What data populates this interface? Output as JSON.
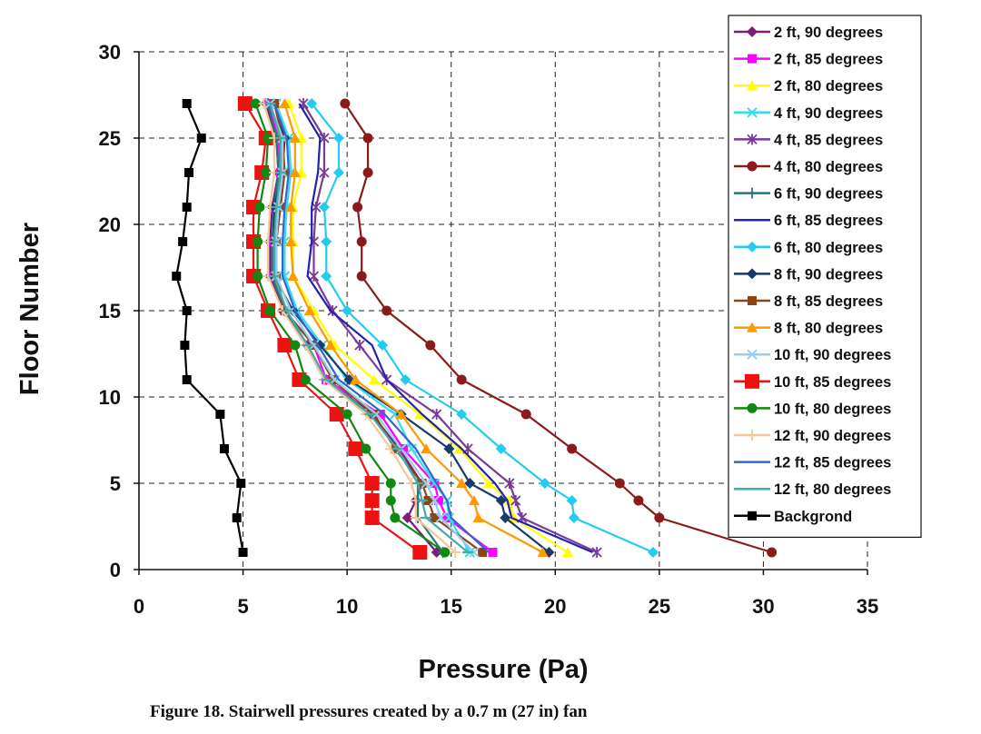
{
  "caption": "Figure 18.  Stairwell pressures created by a 0.7 m (27 in) fan",
  "chart_data": {
    "type": "line",
    "xlabel": "Pressure (Pa)",
    "ylabel": "Floor Number",
    "xlim": [
      0,
      35
    ],
    "ylim": [
      0,
      30
    ],
    "xticks": [
      0,
      5,
      10,
      15,
      20,
      25,
      30,
      35
    ],
    "yticks": [
      0,
      5,
      10,
      15,
      20,
      25,
      30
    ],
    "grid": "dashed",
    "legend_position": "right",
    "floors": [
      1,
      3,
      4,
      5,
      7,
      9,
      11,
      13,
      15,
      17,
      19,
      21,
      23,
      25,
      27
    ],
    "series": [
      {
        "name": "2 ft, 90 degrees",
        "color": "#7B1C7B",
        "marker": "diamond",
        "values": [
          14.3,
          12.9,
          13.3,
          13.6,
          12.5,
          11.2,
          9.0,
          8.1,
          6.9,
          6.3,
          6.3,
          6.4,
          6.7,
          6.6,
          6.1
        ]
      },
      {
        "name": "2 ft, 85 degrees",
        "color": "#FF00FF",
        "marker": "square",
        "values": [
          17.0,
          14.8,
          14.4,
          14.2,
          12.7,
          11.6,
          9.0,
          8.4,
          7.0,
          6.4,
          6.4,
          6.5,
          6.8,
          6.7,
          6.2
        ]
      },
      {
        "name": "2 ft, 80 degrees",
        "color": "#FFFF00",
        "marker": "triangle",
        "values": [
          20.6,
          18.0,
          17.8,
          16.8,
          15.4,
          13.5,
          11.3,
          9.4,
          8.4,
          7.4,
          7.4,
          7.4,
          7.8,
          7.8,
          7.2
        ]
      },
      {
        "name": "4 ft, 90 degrees",
        "color": "#33DDEE",
        "marker": "x",
        "values": [
          15.9,
          14.9,
          14.8,
          14.2,
          13.1,
          12.3,
          10.0,
          8.8,
          7.6,
          7.0,
          7.0,
          7.1,
          7.3,
          7.2,
          6.6
        ]
      },
      {
        "name": "4 ft, 85 degrees",
        "color": "#7A3A9A",
        "marker": "star",
        "values": [
          22.0,
          18.4,
          18.1,
          17.8,
          15.8,
          14.3,
          11.9,
          10.6,
          9.3,
          8.4,
          8.4,
          8.5,
          8.9,
          8.9,
          7.9
        ]
      },
      {
        "name": "4 ft, 80 degrees",
        "color": "#8B1A1A",
        "marker": "circle",
        "values": [
          30.4,
          25.0,
          24.0,
          23.1,
          20.8,
          18.6,
          15.5,
          14.0,
          11.9,
          10.7,
          10.7,
          10.5,
          11.0,
          11.0,
          9.9
        ]
      },
      {
        "name": "6 ft, 90 degrees",
        "color": "#1E7B7B",
        "marker": "plus",
        "values": [
          14.6,
          13.4,
          13.4,
          13.4,
          12.4,
          11.1,
          8.9,
          8.0,
          7.0,
          6.4,
          6.4,
          6.5,
          6.7,
          6.6,
          6.2
        ]
      },
      {
        "name": "6 ft, 85 degrees",
        "color": "#2222AA",
        "marker": "none",
        "values": [
          21.8,
          17.9,
          17.7,
          17.1,
          15.5,
          13.6,
          11.9,
          11.2,
          9.2,
          8.1,
          8.3,
          8.3,
          8.6,
          8.7,
          7.7
        ]
      },
      {
        "name": "6 ft, 80 degrees",
        "color": "#22CCEE",
        "marker": "diamond",
        "values": [
          24.7,
          20.9,
          20.8,
          19.5,
          17.4,
          15.5,
          12.8,
          11.7,
          10.0,
          9.0,
          9.0,
          8.9,
          9.6,
          9.6,
          8.3
        ]
      },
      {
        "name": "8 ft, 90 degrees",
        "color": "#1A3A6A",
        "marker": "diamond",
        "values": [
          19.7,
          17.6,
          17.4,
          15.9,
          14.9,
          12.6,
          10.1,
          8.7,
          7.4,
          6.5,
          6.5,
          6.5,
          6.9,
          7.0,
          6.5
        ]
      },
      {
        "name": "8 ft, 85 degrees",
        "color": "#8B4513",
        "marker": "square",
        "values": [
          16.5,
          14.2,
          13.9,
          13.6,
          12.3,
          11.3,
          9.3,
          8.4,
          7.0,
          6.6,
          6.6,
          6.8,
          7.0,
          6.9,
          6.5
        ]
      },
      {
        "name": "8 ft, 80 degrees",
        "color": "#FF9900",
        "marker": "triangle",
        "values": [
          19.4,
          16.3,
          16.1,
          15.5,
          13.8,
          12.6,
          10.4,
          9.2,
          8.2,
          7.4,
          7.3,
          7.3,
          7.5,
          7.5,
          7.0
        ]
      },
      {
        "name": "10 ft, 90 degrees",
        "color": "#99CCEE",
        "marker": "x",
        "values": [
          16.1,
          14.5,
          14.2,
          13.8,
          12.6,
          11.4,
          9.4,
          8.4,
          7.3,
          6.6,
          6.6,
          6.7,
          6.9,
          6.9,
          6.3
        ]
      },
      {
        "name": "10 ft, 85 degrees",
        "color": "#EE1111",
        "marker": "bigsquare",
        "values": [
          13.5,
          11.2,
          11.2,
          11.2,
          10.4,
          9.5,
          7.7,
          7.0,
          6.2,
          5.5,
          5.5,
          5.5,
          5.9,
          6.1,
          5.1
        ]
      },
      {
        "name": "10 ft, 80 degrees",
        "color": "#118811",
        "marker": "circle",
        "values": [
          14.7,
          12.3,
          12.1,
          12.1,
          10.9,
          10.0,
          8.0,
          7.5,
          6.3,
          5.7,
          5.7,
          5.8,
          6.1,
          6.2,
          5.6
        ]
      },
      {
        "name": "12 ft, 90 degrees",
        "color": "#F5C79A",
        "marker": "plus",
        "values": [
          15.2,
          13.3,
          13.3,
          13.1,
          12.1,
          10.9,
          8.9,
          8.0,
          6.9,
          6.2,
          6.2,
          6.3,
          6.5,
          6.5,
          6.0
        ]
      },
      {
        "name": "12 ft, 85 degrees",
        "color": "#3366CC",
        "marker": "none",
        "values": [
          16.8,
          15.0,
          14.8,
          14.3,
          13.3,
          11.8,
          9.6,
          8.6,
          7.5,
          6.9,
          6.9,
          7.0,
          7.2,
          7.1,
          6.5
        ]
      },
      {
        "name": "12 ft, 80 degrees",
        "color": "#44AAAA",
        "marker": "dash",
        "values": [
          15.8,
          13.8,
          13.6,
          13.4,
          12.4,
          11.1,
          9.0,
          8.1,
          7.1,
          6.5,
          6.5,
          6.6,
          6.8,
          6.8,
          6.3
        ]
      },
      {
        "name": "Backgrond",
        "color": "#000000",
        "marker": "square",
        "floors": [
          1,
          3,
          5,
          7,
          9,
          11,
          13,
          15,
          17,
          19,
          21,
          23,
          25,
          27
        ],
        "values": [
          5.0,
          4.7,
          4.9,
          4.1,
          3.9,
          2.3,
          2.2,
          2.3,
          1.8,
          2.1,
          2.3,
          2.4,
          3.0,
          2.3
        ]
      }
    ]
  }
}
